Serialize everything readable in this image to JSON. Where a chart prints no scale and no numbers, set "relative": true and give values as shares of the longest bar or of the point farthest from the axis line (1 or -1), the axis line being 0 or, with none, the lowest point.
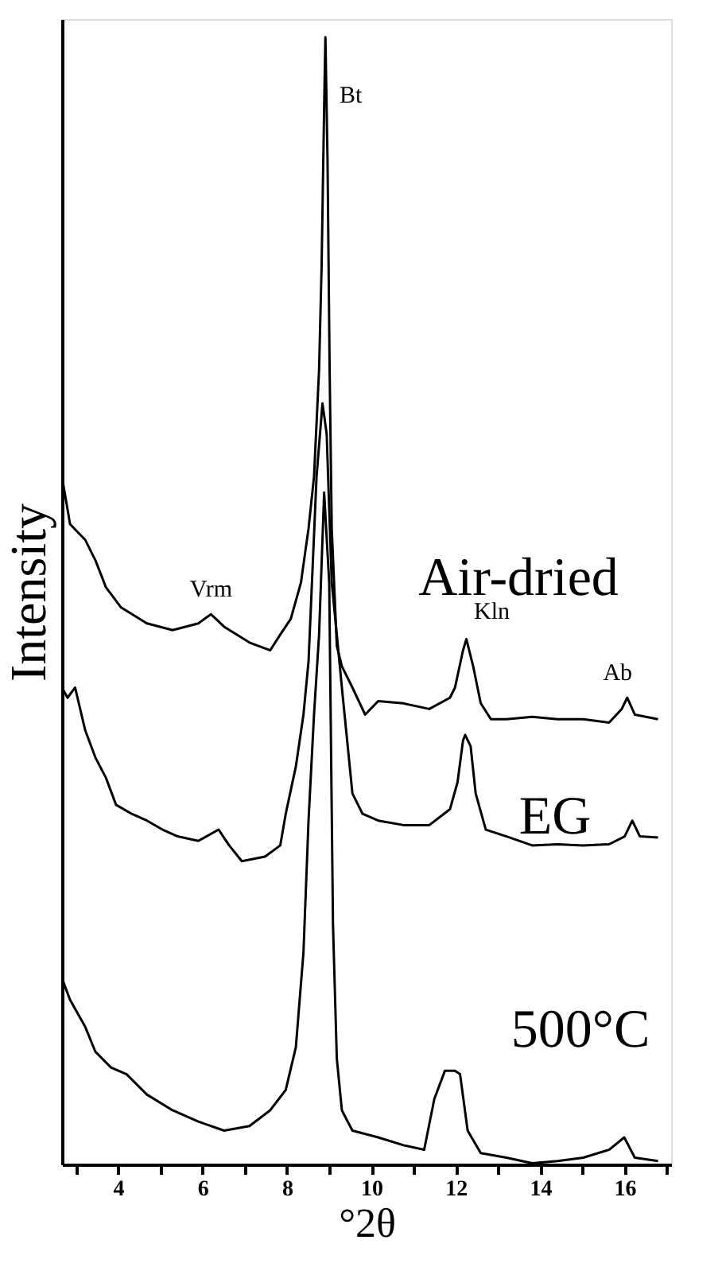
{
  "chart_data": {
    "type": "line",
    "xlabel": "°2θ",
    "ylabel": "Intensity",
    "relative": true,
    "tick_labels": "x",
    "xlim": [
      2.67,
      17.1
    ],
    "xticks": [
      {
        "value": 3,
        "label": null
      },
      4,
      {
        "value": 5,
        "label": null
      },
      6,
      {
        "value": 7,
        "label": null
      },
      8,
      {
        "value": 9,
        "label": null
      },
      10,
      {
        "value": 11,
        "label": null
      },
      12,
      {
        "value": 13,
        "label": null
      },
      14,
      {
        "value": 15,
        "label": null
      },
      16,
      {
        "value": 17,
        "label": null
      }
    ],
    "annotations": [
      {
        "text": "Bt",
        "x": 8.91,
        "y": 1.0
      },
      {
        "text": "Vrm",
        "x": 6.2,
        "y": 0.488
      },
      {
        "text": "Kln",
        "x": 12.25,
        "y": 0.466
      },
      {
        "text": "Ab",
        "x": 16.06,
        "y": 0.414
      }
    ],
    "series": [
      {
        "name": "Air-dried",
        "color": "#000000",
        "x": [
          2.67,
          2.86,
          3.22,
          3.46,
          3.71,
          4.07,
          4.68,
          5.29,
          5.9,
          6.2,
          6.51,
          7.11,
          7.6,
          7.84,
          8.09,
          8.33,
          8.51,
          8.64,
          8.76,
          8.82,
          8.88,
          8.91,
          8.96,
          9.01,
          9.06,
          9.18,
          9.3,
          9.55,
          9.85,
          10.16,
          10.76,
          11.37,
          11.86,
          11.98,
          12.17,
          12.25,
          12.41,
          12.59,
          12.83,
          13.2,
          13.81,
          14.41,
          15.02,
          15.63,
          15.93,
          16.06,
          16.24,
          16.79
        ],
        "values": [
          0.61,
          0.568,
          0.554,
          0.536,
          0.512,
          0.494,
          0.48,
          0.474,
          0.48,
          0.488,
          0.477,
          0.463,
          0.456,
          0.47,
          0.484,
          0.516,
          0.564,
          0.61,
          0.705,
          0.797,
          0.938,
          1.0,
          0.892,
          0.705,
          0.564,
          0.46,
          0.442,
          0.423,
          0.399,
          0.411,
          0.409,
          0.404,
          0.414,
          0.423,
          0.456,
          0.466,
          0.442,
          0.409,
          0.395,
          0.395,
          0.397,
          0.395,
          0.395,
          0.392,
          0.404,
          0.414,
          0.399,
          0.395
        ]
      },
      {
        "name": "EG",
        "color": "#000000",
        "x": [
          2.67,
          2.8,
          2.98,
          3.22,
          3.46,
          3.71,
          3.95,
          4.32,
          4.68,
          5.05,
          5.41,
          5.9,
          6.38,
          6.63,
          6.93,
          7.48,
          7.84,
          7.97,
          8.21,
          8.39,
          8.51,
          8.7,
          8.84,
          8.94,
          9.06,
          9.18,
          9.3,
          9.55,
          9.79,
          10.16,
          10.76,
          11.37,
          11.86,
          12.04,
          12.17,
          12.22,
          12.35,
          12.47,
          12.71,
          13.2,
          13.81,
          14.41,
          15.02,
          15.63,
          16.0,
          16.18,
          16.36,
          16.79
        ],
        "values": [
          0.423,
          0.414,
          0.423,
          0.385,
          0.361,
          0.343,
          0.319,
          0.311,
          0.305,
          0.297,
          0.291,
          0.287,
          0.297,
          0.283,
          0.269,
          0.273,
          0.283,
          0.311,
          0.353,
          0.399,
          0.446,
          0.61,
          0.675,
          0.648,
          0.516,
          0.47,
          0.423,
          0.329,
          0.311,
          0.305,
          0.301,
          0.301,
          0.315,
          0.339,
          0.376,
          0.381,
          0.371,
          0.329,
          0.297,
          0.291,
          0.283,
          0.284,
          0.283,
          0.284,
          0.291,
          0.305,
          0.291,
          0.29
        ]
      },
      {
        "name": "500°C",
        "color": "#000000",
        "x": [
          2.67,
          2.86,
          3.22,
          3.46,
          3.83,
          4.2,
          4.68,
          5.29,
          5.9,
          6.51,
          7.11,
          7.6,
          7.97,
          8.21,
          8.39,
          8.51,
          8.64,
          8.76,
          8.88,
          9.0,
          9.09,
          9.18,
          9.3,
          9.55,
          10.16,
          10.76,
          11.25,
          11.49,
          11.74,
          11.98,
          12.1,
          12.28,
          12.59,
          13.2,
          13.81,
          14.41,
          15.02,
          15.63,
          15.99,
          16.24,
          16.79
        ],
        "values": [
          0.165,
          0.146,
          0.122,
          0.1,
          0.086,
          0.08,
          0.062,
          0.048,
          0.038,
          0.03,
          0.034,
          0.048,
          0.066,
          0.104,
          0.188,
          0.305,
          0.399,
          0.47,
          0.596,
          0.516,
          0.212,
          0.094,
          0.048,
          0.03,
          0.024,
          0.017,
          0.013,
          0.058,
          0.083,
          0.083,
          0.08,
          0.03,
          0.01,
          0.006,
          0.001,
          0.003,
          0.006,
          0.013,
          0.024,
          0.006,
          0.003
        ]
      }
    ]
  }
}
